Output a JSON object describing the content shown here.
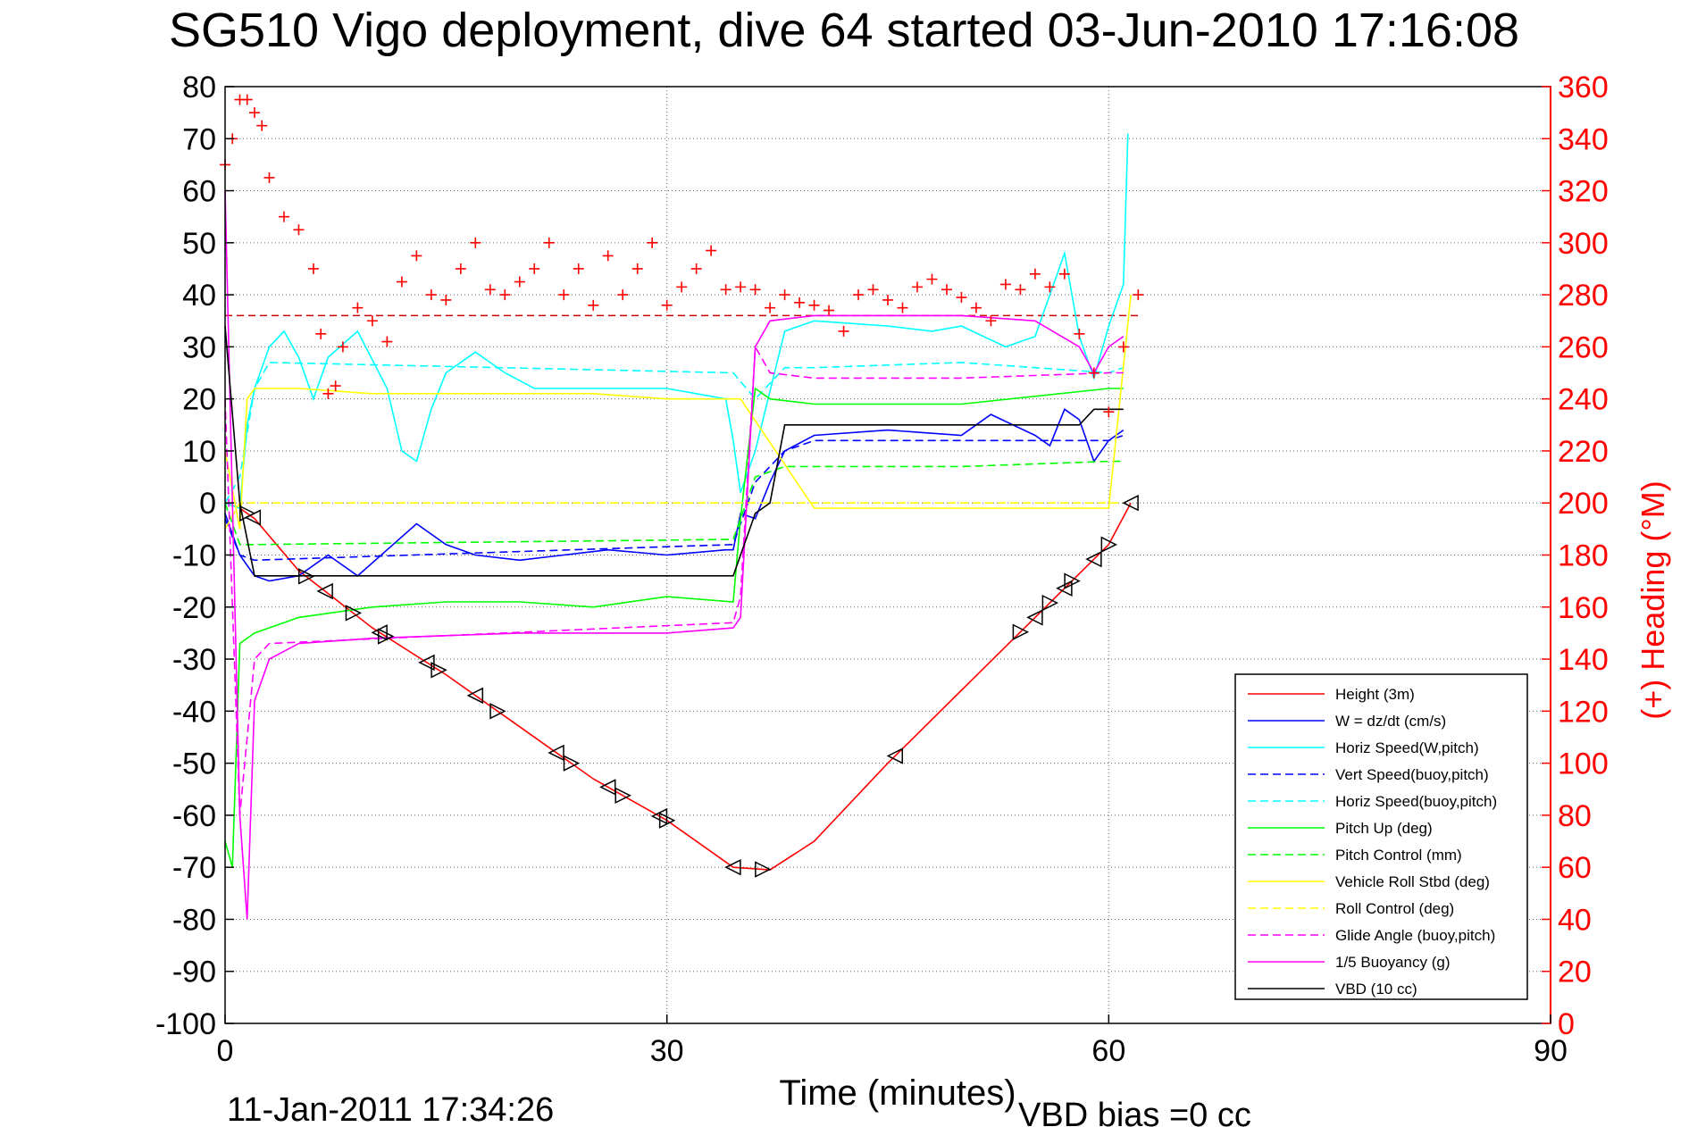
{
  "chart_data": {
    "type": "line",
    "title": "SG510 Vigo deployment, dive 64 started 03-Jun-2010 17:16:08",
    "xlabel": "Time (minutes)",
    "ylabel": "",
    "y2label": "(+) Heading (°M)",
    "xlim": [
      0,
      90
    ],
    "ylim": [
      -100,
      80
    ],
    "y2lim": [
      0,
      360
    ],
    "xticks": [
      "0",
      "30",
      "60",
      "90"
    ],
    "yticks": [
      "80",
      "70",
      "60",
      "50",
      "40",
      "30",
      "20",
      "10",
      "0",
      "-10",
      "-20",
      "-30",
      "-40",
      "-50",
      "-60",
      "-70",
      "-80",
      "-90",
      "-100"
    ],
    "y2ticks": [
      "360",
      "340",
      "320",
      "300",
      "280",
      "260",
      "240",
      "220",
      "200",
      "180",
      "160",
      "140",
      "120",
      "100",
      "80",
      "60",
      "40",
      "20",
      "0"
    ],
    "grid": true,
    "legend_position": "bottom-right",
    "colors": {
      "height": "#ff0000",
      "w": "#0000ff",
      "horiz_w": "#00ffff",
      "vert_buoy": "#0000ff",
      "horiz_buoy": "#00ffff",
      "pitch": "#00ff00",
      "pitch_ctl": "#00ff00",
      "roll": "#ffff00",
      "roll_ctl": "#ffff00",
      "glide": "#ff00ff",
      "buoy": "#ff00ff",
      "vbd": "#000000",
      "heading": "#ff0000",
      "axis2": "#ff0000"
    },
    "series": [
      {
        "name": "Height (3m)",
        "style": "solid",
        "color": "height",
        "x": [
          0,
          1,
          2,
          5,
          10,
          15,
          20,
          25,
          30,
          34.5,
          37,
          40,
          45,
          50,
          55,
          60,
          61.5
        ],
        "y": [
          0,
          -1,
          -3,
          -13,
          -24,
          -33,
          -43,
          -53,
          -61,
          -70,
          -70.5,
          -65,
          -50,
          -36,
          -22,
          -8,
          0
        ]
      },
      {
        "name": "W = dz/dt (cm/s)",
        "style": "solid",
        "color": "w",
        "x": [
          0,
          1,
          2,
          3,
          5,
          7,
          9,
          11,
          13,
          15,
          17,
          20,
          23,
          26,
          30,
          34,
          34.5,
          35,
          36,
          37,
          38,
          40,
          45,
          50,
          52,
          55,
          56,
          57,
          58,
          59,
          60,
          61
        ],
        "y": [
          -2,
          -10,
          -14,
          -15,
          -14,
          -10,
          -14,
          -9,
          -4,
          -8,
          -10,
          -11,
          -10,
          -9,
          -10,
          -9,
          -9,
          -2,
          -3,
          4,
          10,
          13,
          14,
          13,
          17,
          13,
          11,
          18,
          16,
          8,
          12,
          14
        ]
      },
      {
        "name": "Horiz Speed(W,pitch)",
        "style": "solid",
        "color": "horiz_w",
        "x": [
          0,
          1,
          1.5,
          2,
          3,
          4,
          5,
          6,
          7,
          9,
          11,
          12,
          13,
          14,
          15,
          17,
          19,
          21,
          25,
          30,
          34,
          34.5,
          35,
          36,
          38,
          40,
          45,
          48,
          50,
          53,
          55,
          57,
          58,
          59,
          60,
          61,
          61.3
        ],
        "y": [
          0,
          -1,
          15,
          22,
          30,
          33,
          28,
          20,
          28,
          33,
          22,
          10,
          8,
          18,
          25,
          29,
          25,
          22,
          22,
          22,
          20,
          12,
          2,
          10,
          33,
          35,
          34,
          33,
          34,
          30,
          32,
          48,
          32,
          24,
          34,
          42,
          71
        ]
      },
      {
        "name": "Vert Speed(buoy,pitch)",
        "style": "dashed",
        "color": "vert_buoy",
        "x": [
          0,
          1,
          2,
          34.5,
          36,
          38,
          40,
          50,
          60,
          61
        ],
        "y": [
          -3,
          -10,
          -11,
          -8,
          4,
          10,
          12,
          12,
          12,
          13
        ]
      },
      {
        "name": "Horiz Speed(buoy,pitch)",
        "style": "dashed",
        "color": "horiz_buoy",
        "x": [
          0,
          1,
          2,
          3,
          34.5,
          36,
          38,
          40,
          50,
          60,
          61
        ],
        "y": [
          0,
          5,
          22,
          27,
          25,
          20,
          26,
          26,
          27,
          25,
          26
        ]
      },
      {
        "name": "Pitch Up (deg)",
        "style": "solid",
        "color": "pitch",
        "x": [
          0,
          0.5,
          1,
          2,
          5,
          10,
          15,
          20,
          25,
          30,
          34.5,
          35,
          36,
          37,
          40,
          50,
          60,
          61
        ],
        "y": [
          -65,
          -70,
          -27,
          -25,
          -22,
          -20,
          -19,
          -19,
          -20,
          -18,
          -19,
          -3,
          22,
          20,
          19,
          19,
          22,
          22
        ]
      },
      {
        "name": "Pitch Control (mm)",
        "style": "dashed",
        "color": "pitch_ctl",
        "x": [
          0,
          1,
          2,
          34.5,
          36,
          38,
          50,
          60,
          61
        ],
        "y": [
          0,
          -8,
          -8,
          -7,
          5,
          7,
          7,
          8,
          8
        ]
      },
      {
        "name": "Vehicle Roll Stbd (deg)",
        "style": "solid",
        "color": "roll",
        "x": [
          0,
          1,
          1.5,
          2,
          5,
          10,
          15,
          20,
          25,
          30,
          35,
          40,
          45,
          50,
          55,
          60,
          61.5
        ],
        "y": [
          10,
          -5,
          20,
          22,
          22,
          21,
          21,
          21,
          21,
          20,
          20,
          -1,
          -1,
          -1,
          -1,
          -1,
          40
        ]
      },
      {
        "name": "Roll Control (deg)",
        "style": "dashed",
        "color": "roll_ctl",
        "x": [
          0,
          1,
          2,
          34.5,
          36,
          61
        ],
        "y": [
          -5,
          0,
          0,
          0,
          0,
          0
        ]
      },
      {
        "name": "Glide Angle (buoy,pitch)",
        "style": "dashed",
        "color": "glide",
        "x": [
          0,
          1,
          2,
          3,
          34.5,
          35,
          36,
          37,
          40,
          50,
          60,
          61
        ],
        "y": [
          20,
          -60,
          -30,
          -27,
          -23,
          -18,
          30,
          25,
          24,
          24,
          25,
          25
        ]
      },
      {
        "name": "1/5 Buoyancy (g)",
        "style": "solid",
        "color": "buoy",
        "x": [
          0,
          1,
          1.5,
          2,
          3,
          5,
          10,
          20,
          30,
          34.5,
          35,
          36,
          37,
          40,
          50,
          55,
          58,
          59,
          60,
          61
        ],
        "y": [
          60,
          -60,
          -80,
          -38,
          -30,
          -27,
          -26,
          -25,
          -25,
          -24,
          -22,
          30,
          35,
          36,
          36,
          35,
          30,
          25,
          30,
          32
        ]
      },
      {
        "name": "VBD (10 cc)",
        "style": "solid",
        "color": "vbd",
        "x": [
          0,
          1,
          2,
          34.5,
          36,
          37,
          38,
          50,
          58,
          59,
          60,
          61
        ],
        "y": [
          34,
          0,
          -14,
          -14,
          -2,
          0,
          15,
          15,
          15,
          18,
          18,
          18
        ]
      }
    ],
    "heading": {
      "name": "(+) Heading",
      "axis": "right",
      "marker": "+",
      "x": [
        0,
        0.5,
        1,
        1.5,
        2,
        2.5,
        3,
        4,
        5,
        6,
        6.5,
        7,
        7.5,
        8,
        9,
        10,
        11,
        12,
        13,
        14,
        15,
        16,
        17,
        18,
        19,
        20,
        21,
        22,
        23,
        24,
        25,
        26,
        27,
        28,
        29,
        30,
        31,
        32,
        33,
        34,
        35,
        36,
        37,
        38,
        39,
        40,
        41,
        42,
        43,
        44,
        45,
        46,
        47,
        48,
        49,
        50,
        51,
        52,
        53,
        54,
        55,
        56,
        57,
        58,
        59,
        60,
        61,
        62
      ],
      "y": [
        330,
        340,
        355,
        355,
        350,
        345,
        325,
        310,
        305,
        290,
        265,
        242,
        245,
        260,
        275,
        270,
        262,
        285,
        295,
        280,
        278,
        290,
        300,
        282,
        280,
        285,
        290,
        300,
        280,
        290,
        276,
        295,
        280,
        290,
        300,
        276,
        283,
        290,
        297,
        282,
        283,
        282,
        275,
        280,
        277,
        276,
        274,
        266,
        280,
        282,
        278,
        275,
        283,
        286,
        282,
        279,
        275,
        270,
        284,
        282,
        288,
        283,
        288,
        265,
        250,
        235,
        260,
        280
      ]
    },
    "bias_line": {
      "y2": 272,
      "color": "#cc0000",
      "style": "dashed"
    },
    "vbd_markers_x": [
      1.5,
      1.9,
      5.5,
      6.8,
      8.7,
      10.5,
      10.9,
      13.7,
      14.5,
      17,
      18.5,
      22.5,
      23.5,
      26,
      27,
      29.5,
      30,
      34.5,
      36.5,
      45.5,
      54,
      55,
      56,
      57,
      57.5,
      59,
      60,
      61.5
    ],
    "footer_left": "11-Jan-2011 17:34:26",
    "footer_right": "VBD bias =0 cc"
  }
}
